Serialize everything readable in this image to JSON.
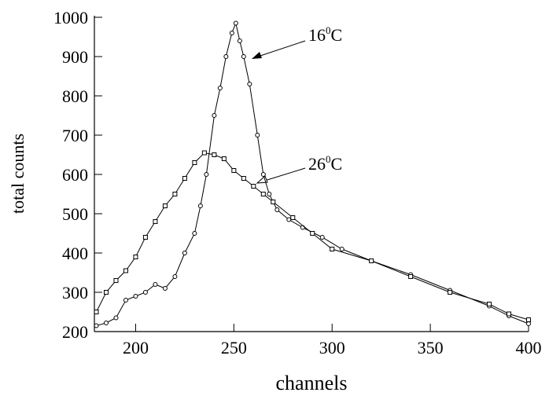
{
  "chart_data": {
    "type": "line",
    "xlabel": "channels",
    "ylabel": "total counts",
    "xlim": [
      179,
      400
    ],
    "xticks": [
      200,
      250,
      300,
      350,
      400
    ],
    "ylim": [
      200,
      1000
    ],
    "yticks": [
      200,
      300,
      400,
      500,
      600,
      700,
      800,
      900,
      1000
    ],
    "grid": false,
    "series": [
      {
        "color": "#000000",
        "marker": "circle",
        "x": [
          180,
          185,
          190,
          195,
          200,
          205,
          210,
          215,
          220,
          225,
          230,
          233,
          236,
          240,
          243,
          246,
          249,
          251,
          253,
          255,
          258,
          262,
          265,
          268,
          272,
          278,
          285,
          295,
          305,
          320,
          340,
          360,
          380,
          390,
          400
        ],
        "values": [
          215,
          222,
          235,
          280,
          290,
          300,
          320,
          310,
          340,
          400,
          450,
          520,
          600,
          750,
          820,
          900,
          960,
          985,
          940,
          900,
          830,
          700,
          600,
          550,
          510,
          485,
          465,
          440,
          410,
          380,
          345,
          305,
          265,
          240,
          220
        ]
      },
      {
        "color": "#000000",
        "marker": "square",
        "x": [
          180,
          185,
          190,
          195,
          200,
          205,
          210,
          215,
          220,
          225,
          230,
          235,
          240,
          245,
          250,
          255,
          260,
          265,
          270,
          280,
          290,
          300,
          320,
          340,
          360,
          380,
          390,
          400
        ],
        "values": [
          250,
          300,
          330,
          355,
          390,
          440,
          480,
          520,
          550,
          590,
          630,
          655,
          650,
          640,
          610,
          590,
          570,
          550,
          530,
          490,
          450,
          410,
          380,
          340,
          300,
          270,
          245,
          230
        ]
      }
    ],
    "annotations": [
      {
        "text": "16",
        "sup": "0",
        "unit": "C"
      },
      {
        "text": "26",
        "sup": "0",
        "unit": "C"
      }
    ]
  }
}
